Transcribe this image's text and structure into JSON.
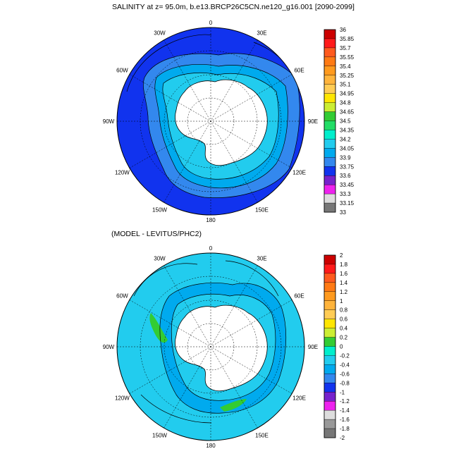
{
  "panels": [
    {
      "title": "SALINITY at z=  95.0m, b.e13.BRCP26C5CN.ne120_g16.001 [2090-2099]",
      "longitude_labels": [
        "0",
        "30E",
        "60E",
        "90E",
        "120E",
        "150E",
        "180",
        "150W",
        "120W",
        "90W",
        "60W",
        "30W"
      ],
      "colorbar": {
        "labels": [
          "36",
          "35.85",
          "35.7",
          "35.55",
          "35.4",
          "35.25",
          "35.1",
          "34.95",
          "34.8",
          "34.65",
          "34.5",
          "34.35",
          "34.2",
          "34.05",
          "33.9",
          "33.75",
          "33.6",
          "33.45",
          "33.3",
          "33.15",
          "33"
        ],
        "colors": [
          "#cc0000",
          "#ff1a1a",
          "#ff5a1e",
          "#ff7a14",
          "#ff9a1e",
          "#ffb43c",
          "#ffcc55",
          "#ffe600",
          "#ccee33",
          "#33cc33",
          "#22dd66",
          "#00eecc",
          "#22ccee",
          "#00aaee",
          "#3388ee",
          "#1133ee",
          "#7722cc",
          "#ee22ee",
          "#dddddd",
          "#777777"
        ]
      },
      "colors": {
        "ocean": "#1133ee",
        "shelf_light": "#22ccee",
        "shelf_mid": "#00aaee",
        "land": "#ffffff"
      }
    },
    {
      "title": "(MODEL - LEVITUS/PHC2)",
      "longitude_labels": [
        "0",
        "30E",
        "60E",
        "90E",
        "120E",
        "150E",
        "180",
        "150W",
        "120W",
        "90W",
        "60W",
        "30W"
      ],
      "colorbar": {
        "labels": [
          "2",
          "1.8",
          "1.6",
          "1.4",
          "1.2",
          "1",
          "0.8",
          "0.6",
          "0.4",
          "0.2",
          "0",
          "-0.2",
          "-0.4",
          "-0.6",
          "-0.8",
          "-1",
          "-1.2",
          "-1.4",
          "-1.6",
          "-1.8",
          "-2"
        ],
        "colors": [
          "#cc0000",
          "#ff1a1a",
          "#ff5a1e",
          "#ff7a14",
          "#ff9a1e",
          "#ffb43c",
          "#ffcc55",
          "#ffe600",
          "#ccee33",
          "#33cc33",
          "#00eecc",
          "#22ccee",
          "#00aaee",
          "#3388ee",
          "#1133ee",
          "#7722cc",
          "#ee22ee",
          "#dddddd",
          "#999999",
          "#777777"
        ]
      },
      "colors": {
        "ocean": "#22ccee",
        "band": "#00aaee",
        "land": "#ffffff"
      }
    }
  ]
}
